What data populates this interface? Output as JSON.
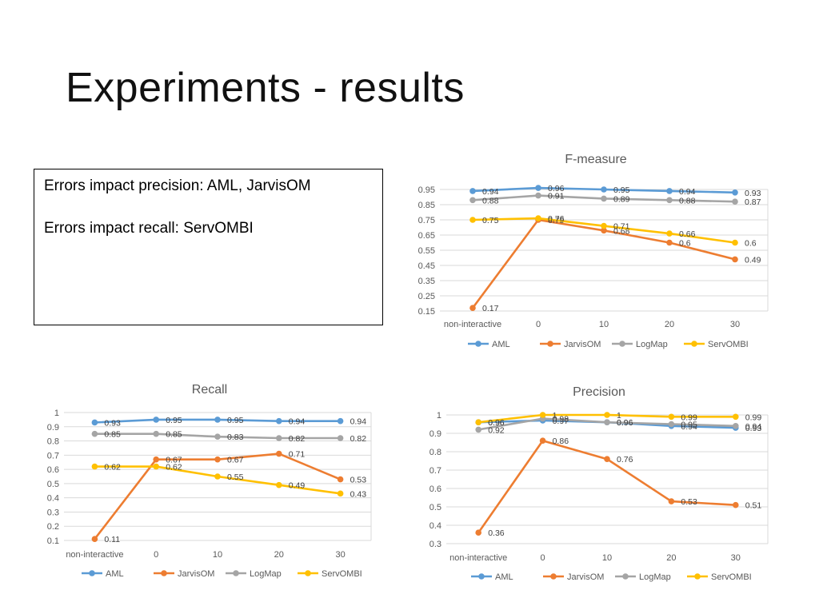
{
  "slide": {
    "title": "Experiments - results",
    "notes": [
      "Errors impact precision: AML, JarvisOM",
      "Errors impact recall: ServOMBI"
    ]
  },
  "colors": {
    "AML": "#5B9BD5",
    "JarvisOM": "#ED7D31",
    "LogMap": "#A5A5A5",
    "ServOMBI": "#FFC000",
    "grid": "#d9d9d9",
    "axis_text": "#595959"
  },
  "chart_data": [
    {
      "id": "fmeasure",
      "type": "line",
      "title": "F-measure",
      "categories": [
        "non-interactive",
        "0",
        "10",
        "20",
        "30"
      ],
      "ylim": [
        0.15,
        0.95
      ],
      "yticks": [
        "0.95",
        "0.85",
        "0.75",
        "0.65",
        "0.55",
        "0.45",
        "0.35",
        "0.25",
        "0.15"
      ],
      "series": [
        {
          "name": "AML",
          "values": [
            0.94,
            0.96,
            0.95,
            0.94,
            0.93
          ]
        },
        {
          "name": "JarvisOM",
          "values": [
            0.17,
            0.75,
            0.68,
            0.6,
            0.49
          ]
        },
        {
          "name": "LogMap",
          "values": [
            0.88,
            0.91,
            0.89,
            0.88,
            0.87
          ]
        },
        {
          "name": "ServOMBI",
          "values": [
            0.75,
            0.76,
            0.71,
            0.66,
            0.6
          ]
        }
      ]
    },
    {
      "id": "recall",
      "type": "line",
      "title": "Recall",
      "categories": [
        "non-interactive",
        "0",
        "10",
        "20",
        "30"
      ],
      "ylim": [
        0.1,
        1
      ],
      "yticks": [
        "1",
        "0.9",
        "0.8",
        "0.7",
        "0.6",
        "0.5",
        "0.4",
        "0.3",
        "0.2",
        "0.1"
      ],
      "series": [
        {
          "name": "AML",
          "values": [
            0.93,
            0.95,
            0.95,
            0.94,
            0.94
          ]
        },
        {
          "name": "JarvisOM",
          "values": [
            0.11,
            0.67,
            0.67,
            0.71,
            0.53
          ]
        },
        {
          "name": "LogMap",
          "values": [
            0.85,
            0.85,
            0.83,
            0.82,
            0.82
          ]
        },
        {
          "name": "ServOMBI",
          "values": [
            0.62,
            0.62,
            0.55,
            0.49,
            0.43
          ]
        }
      ]
    },
    {
      "id": "precision",
      "type": "line",
      "title": "Precision",
      "categories": [
        "non-interactive",
        "0",
        "10",
        "20",
        "30"
      ],
      "ylim": [
        0.3,
        1
      ],
      "yticks": [
        "1",
        "0.9",
        "0.8",
        "0.7",
        "0.6",
        "0.5",
        "0.4",
        "0.3"
      ],
      "series": [
        {
          "name": "AML",
          "values": [
            0.96,
            0.97,
            0.96,
            0.94,
            0.93
          ]
        },
        {
          "name": "JarvisOM",
          "values": [
            0.36,
            0.86,
            0.76,
            0.53,
            0.51
          ]
        },
        {
          "name": "LogMap",
          "values": [
            0.92,
            0.98,
            0.96,
            0.95,
            0.94
          ]
        },
        {
          "name": "ServOMBI",
          "values": [
            0.96,
            1,
            1,
            0.99,
            0.99
          ]
        }
      ]
    }
  ]
}
